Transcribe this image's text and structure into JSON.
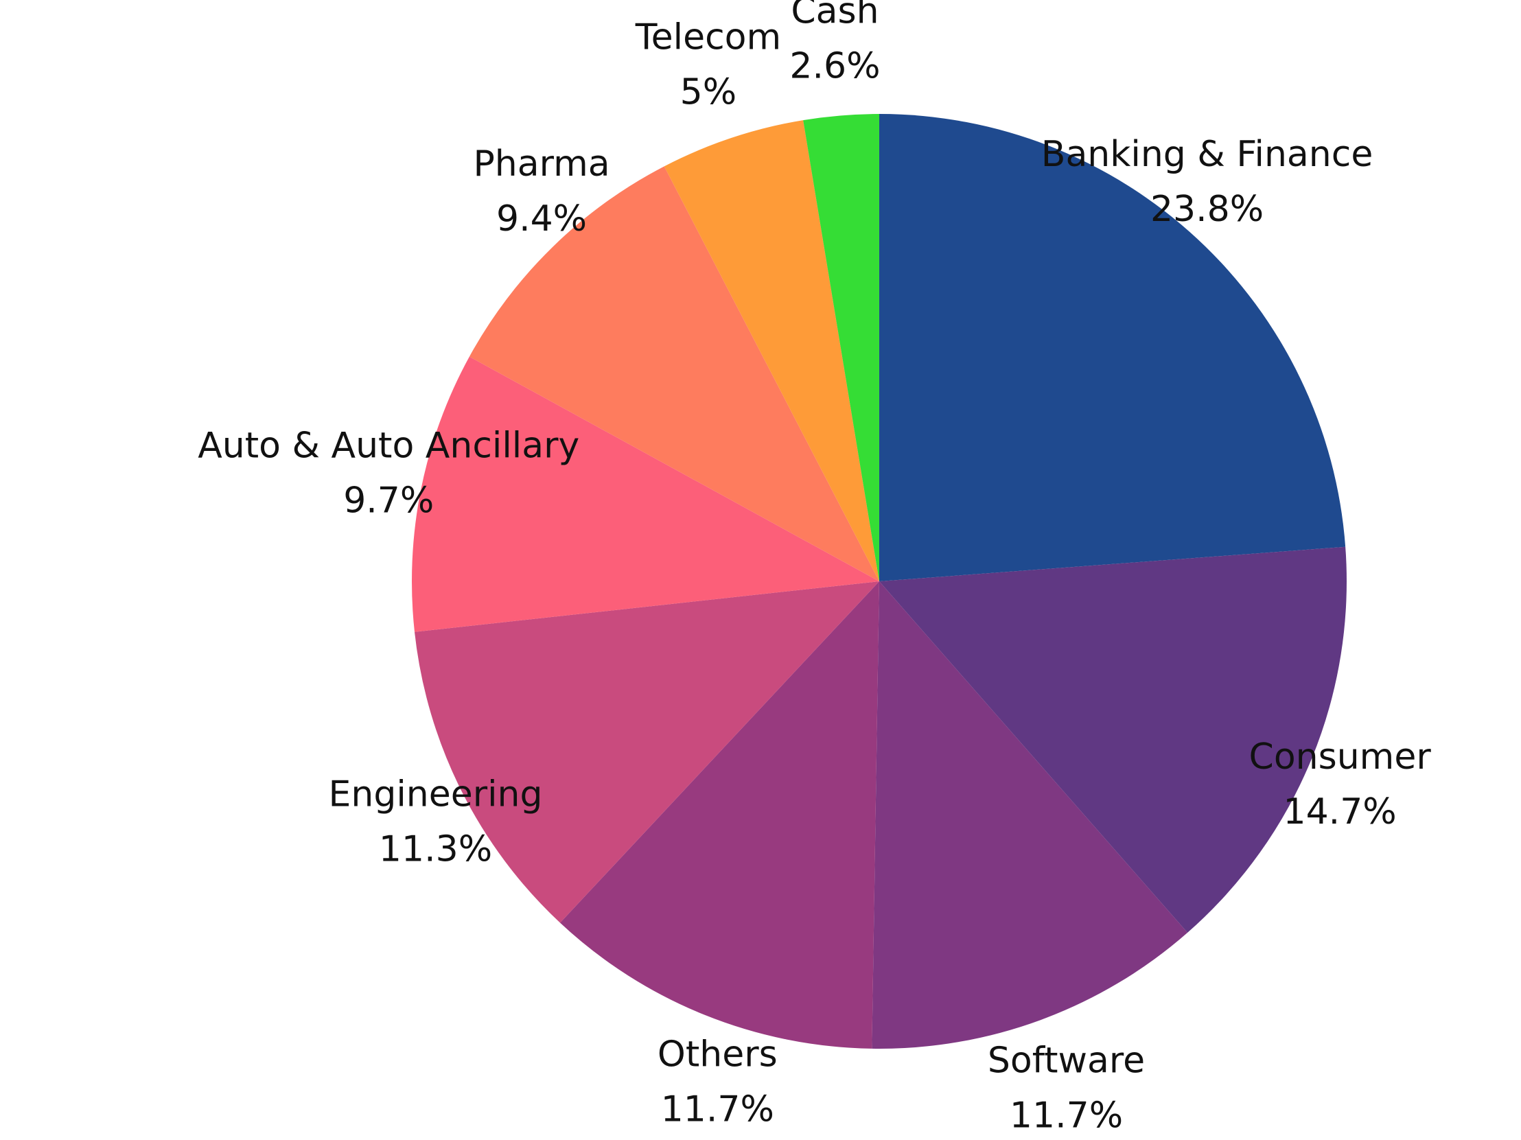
{
  "chart_data": {
    "type": "pie",
    "categories": [
      "Banking & Finance",
      "Consumer",
      "Software",
      "Others",
      "Engineering",
      "Auto & Auto Ancillary",
      "Pharma",
      "Telecom",
      "Cash"
    ],
    "values": [
      23.8,
      14.7,
      11.7,
      11.7,
      11.3,
      9.7,
      9.4,
      5,
      2.6
    ],
    "value_labels": [
      "23.8%",
      "14.7%",
      "11.7%",
      "11.7%",
      "11.3%",
      "9.7%",
      "9.4%",
      "5%",
      "2.6%"
    ],
    "colors": [
      "#1f4a8f",
      "#603883",
      "#7f3882",
      "#983a7f",
      "#c94b7e",
      "#fc5f79",
      "#fe7c5e",
      "#fe9b38",
      "#35dd35"
    ]
  }
}
